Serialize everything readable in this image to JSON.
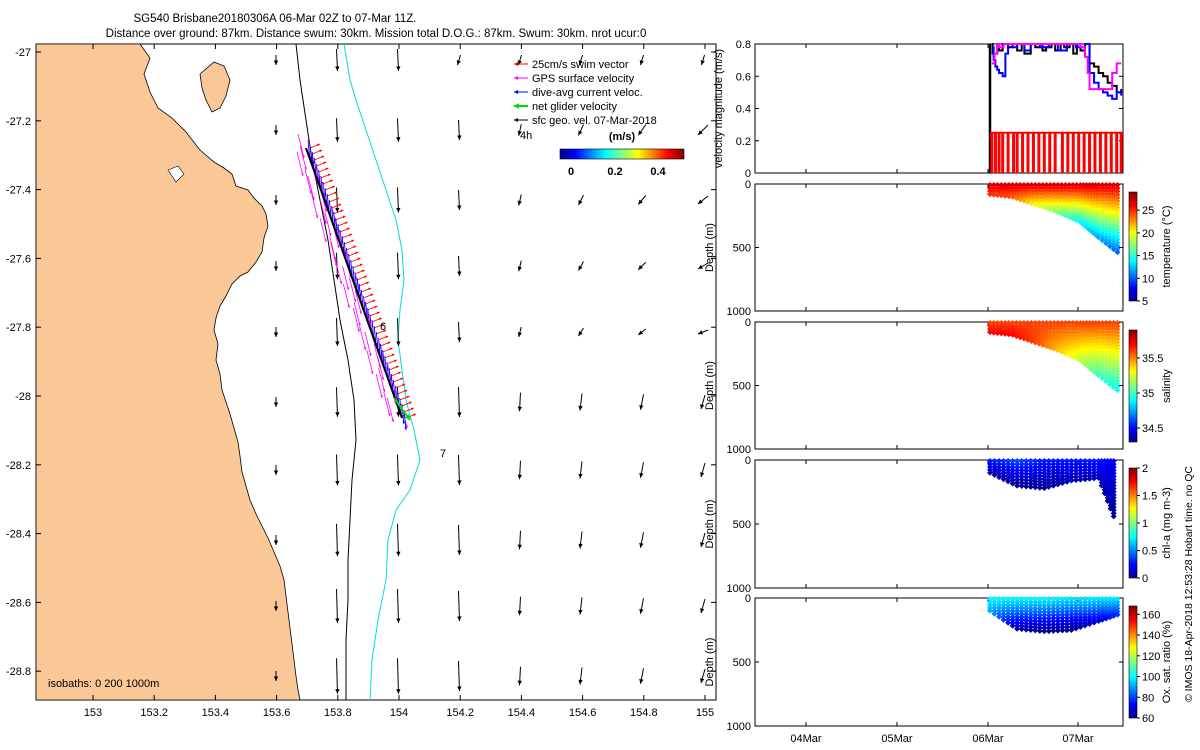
{
  "title": {
    "line1": "SG540 Brisbane20180306A 06-Mar 02Z to 07-Mar 11Z.",
    "line2": "Distance over ground: 87km. Distance swum: 30km. Mission total D.O.G.: 87km. Swum: 30km. nrot ucur:0"
  },
  "credit": "© IMOS 18-Apr-2018 12:53:28 Hobart time. no QC",
  "colors": {
    "land": "#f9c896",
    "swim_vector": "#ff0000",
    "gps_velocity": "#ff00ff",
    "dive_avg_current": "#0000ff",
    "net_glider_velocity": "#00dd00",
    "isobath_200": "#000000",
    "isobath_1000": "#00dddd",
    "velocity_black": "#000000"
  },
  "map": {
    "x_ticks": [
      "153",
      "153.2",
      "153.4",
      "153.6",
      "153.8",
      "154",
      "154.2",
      "154.4",
      "154.6",
      "154.8",
      "155"
    ],
    "y_ticks": [
      "-27",
      "-27.2",
      "-27.4",
      "-27.6",
      "-27.8",
      "-28",
      "-28.2",
      "-28.4",
      "-28.6",
      "-28.8"
    ],
    "isobaths_label": "isobaths: 0   200  1000m",
    "legend": [
      "25cm/s swim vector",
      "GPS surface velocity",
      "dive-avg current veloc.",
      "net glider velocity",
      "sfc geo. vel. 07-Mar-2018"
    ],
    "time_labels": [
      "4h",
      "6",
      "7"
    ],
    "colorbar": {
      "title": "(m/s)",
      "ticks": [
        "0",
        "0.2",
        "0.4"
      ]
    }
  },
  "time_axis": {
    "ticks": [
      "04Mar",
      "05Mar",
      "06Mar",
      "07Mar"
    ]
  },
  "chart_data": [
    {
      "type": "line",
      "title": "",
      "ylabel": "velocity magnitude (m/s)",
      "x_ticks": [
        "04Mar",
        "05Mar",
        "06Mar",
        "07Mar"
      ],
      "y_ticks": [
        "0",
        "0.2",
        "0.4",
        "0.6",
        "0.8"
      ],
      "ylim": [
        0,
        0.8
      ],
      "series": [
        {
          "color": "#000000",
          "x_days": [
            0.02,
            0.03,
            0.08,
            0.1,
            0.14,
            0.2,
            0.25,
            0.3,
            0.35,
            0.38,
            0.45,
            0.5,
            0.55,
            0.58,
            0.62,
            0.68,
            0.72,
            0.78,
            0.82,
            0.88,
            0.92,
            0.96,
            1.0,
            1.05,
            1.1,
            1.15,
            1.2,
            1.25,
            1.3,
            1.35,
            1.4,
            1.45
          ],
          "values": [
            0.8,
            0.74,
            0.8,
            0.76,
            0.8,
            0.78,
            0.8,
            0.76,
            0.8,
            0.74,
            0.8,
            0.78,
            0.8,
            0.76,
            0.78,
            0.8,
            0.76,
            0.8,
            0.78,
            0.8,
            0.74,
            0.8,
            0.76,
            0.8,
            0.68,
            0.66,
            0.62,
            0.6,
            0.56,
            0.54,
            0.5,
            0.52
          ]
        },
        {
          "color": "#0000ff",
          "x_days": [
            0.02,
            0.04,
            0.06,
            0.08,
            0.1,
            0.14,
            0.17,
            0.2,
            0.25,
            0.3,
            0.38,
            0.45,
            0.55,
            0.65,
            0.75,
            0.85,
            0.95,
            1.05,
            1.1,
            1.15,
            1.2,
            1.25,
            1.3,
            1.35,
            1.4,
            1.45
          ],
          "values": [
            0.78,
            0.7,
            0.66,
            0.64,
            0.62,
            0.6,
            0.74,
            0.8,
            0.78,
            0.8,
            0.76,
            0.8,
            0.78,
            0.8,
            0.76,
            0.8,
            0.78,
            0.8,
            0.62,
            0.56,
            0.52,
            0.5,
            0.48,
            0.46,
            0.5,
            0.48
          ]
        },
        {
          "color": "#ff00ff",
          "x_days": [
            0.02,
            0.05,
            0.08,
            0.1,
            0.15,
            0.2,
            0.3,
            0.4,
            0.5,
            0.6,
            0.7,
            0.8,
            0.9,
            1.0,
            1.05,
            1.08,
            1.1,
            1.2,
            1.3,
            1.35,
            1.4,
            1.45
          ],
          "values": [
            0.68,
            0.74,
            0.8,
            0.78,
            0.8,
            0.8,
            0.8,
            0.8,
            0.8,
            0.8,
            0.8,
            0.8,
            0.8,
            0.78,
            0.72,
            0.62,
            0.52,
            0.52,
            0.52,
            0.62,
            0.68,
            0.68
          ]
        },
        {
          "color": "#ff0000",
          "x_days": [
            0.02,
            0.06,
            0.1,
            0.14,
            0.2,
            0.26,
            0.3,
            0.36,
            0.42,
            0.48,
            0.54,
            0.6,
            0.66,
            0.72,
            0.8,
            0.86,
            0.92,
            0.98,
            1.04,
            1.1,
            1.16,
            1.22,
            1.28,
            1.34,
            1.4,
            1.45
          ],
          "values": [
            0.25,
            0.25,
            0.25,
            0.25,
            0.25,
            0.25,
            0.25,
            0.25,
            0.25,
            0.25,
            0.25,
            0.25,
            0.25,
            0.25,
            0.25,
            0.25,
            0.25,
            0.25,
            0.25,
            0.25,
            0.25,
            0.25,
            0.25,
            0.25,
            0.25,
            0.25
          ]
        }
      ]
    },
    {
      "type": "scatter",
      "ylabel": "Depth (m)",
      "y_ticks": [
        "0",
        "500",
        "1000"
      ],
      "ylim": [
        1000,
        0
      ],
      "colorbar_label": "temperature (°C)",
      "colorbar_ticks": [
        "25",
        "20",
        "15",
        "10",
        "5"
      ],
      "colorbar_range": [
        5,
        29
      ],
      "profiles": [
        {
          "x_days": 0.0,
          "max_depth": 80,
          "top_value": 27,
          "bottom_value": 25
        },
        {
          "x_days": 0.25,
          "max_depth": 100,
          "top_value": 27,
          "bottom_value": 24
        },
        {
          "x_days": 0.5,
          "max_depth": 160,
          "top_value": 27,
          "bottom_value": 20
        },
        {
          "x_days": 0.75,
          "max_depth": 220,
          "top_value": 27,
          "bottom_value": 17
        },
        {
          "x_days": 1.0,
          "max_depth": 300,
          "top_value": 27,
          "bottom_value": 14
        },
        {
          "x_days": 1.2,
          "max_depth": 420,
          "top_value": 27,
          "bottom_value": 12
        },
        {
          "x_days": 1.45,
          "max_depth": 560,
          "top_value": 27,
          "bottom_value": 10
        }
      ]
    },
    {
      "type": "scatter",
      "ylabel": "Depth (m)",
      "y_ticks": [
        "0",
        "500",
        "1000"
      ],
      "ylim": [
        1000,
        0
      ],
      "colorbar_label": "salinity",
      "colorbar_ticks": [
        "35.5",
        "35",
        "34.5"
      ],
      "colorbar_range": [
        34.3,
        35.9
      ],
      "profiles": [
        {
          "x_days": 0.0,
          "max_depth": 80,
          "top_value": 35.6,
          "bottom_value": 35.7
        },
        {
          "x_days": 0.25,
          "max_depth": 100,
          "top_value": 35.6,
          "bottom_value": 35.7
        },
        {
          "x_days": 0.5,
          "max_depth": 160,
          "top_value": 35.6,
          "bottom_value": 35.6
        },
        {
          "x_days": 0.75,
          "max_depth": 220,
          "top_value": 35.6,
          "bottom_value": 35.4
        },
        {
          "x_days": 1.0,
          "max_depth": 300,
          "top_value": 35.6,
          "bottom_value": 35.2
        },
        {
          "x_days": 1.2,
          "max_depth": 420,
          "top_value": 35.6,
          "bottom_value": 35.0
        },
        {
          "x_days": 1.45,
          "max_depth": 560,
          "top_value": 35.6,
          "bottom_value": 34.9
        }
      ]
    },
    {
      "type": "scatter",
      "ylabel": "Depth (m)",
      "y_ticks": [
        "0",
        "500",
        "1000"
      ],
      "ylim": [
        1000,
        0
      ],
      "colorbar_label": "chl-a (mg m-3)",
      "colorbar_ticks": [
        "2",
        "1.5",
        "1",
        "0.5",
        "0"
      ],
      "colorbar_range": [
        0,
        2
      ],
      "profiles": [
        {
          "x_days": 0.0,
          "max_depth": 100,
          "top_value": 0.3,
          "bottom_value": 0.1
        },
        {
          "x_days": 0.3,
          "max_depth": 200,
          "top_value": 0.4,
          "bottom_value": 0.05
        },
        {
          "x_days": 0.6,
          "max_depth": 220,
          "top_value": 0.3,
          "bottom_value": 0.05
        },
        {
          "x_days": 0.9,
          "max_depth": 160,
          "top_value": 0.3,
          "bottom_value": 0.1
        },
        {
          "x_days": 1.2,
          "max_depth": 140,
          "top_value": 0.3,
          "bottom_value": 0.1
        },
        {
          "x_days": 1.4,
          "max_depth": 500,
          "top_value": 0.2,
          "bottom_value": 0.05
        }
      ]
    },
    {
      "type": "scatter",
      "ylabel": "Depth (m)",
      "y_ticks": [
        "0",
        "500",
        "1000"
      ],
      "ylim": [
        1000,
        0
      ],
      "colorbar_label": "Ox. sat. ratio (%)",
      "colorbar_ticks": [
        "160",
        "140",
        "120",
        "100",
        "80",
        "60"
      ],
      "colorbar_range": [
        60,
        168
      ],
      "profiles": [
        {
          "x_days": 0.0,
          "max_depth": 100,
          "top_value": 100,
          "bottom_value": 92
        },
        {
          "x_days": 0.3,
          "max_depth": 240,
          "top_value": 100,
          "bottom_value": 66
        },
        {
          "x_days": 0.6,
          "max_depth": 260,
          "top_value": 100,
          "bottom_value": 62
        },
        {
          "x_days": 0.9,
          "max_depth": 250,
          "top_value": 98,
          "bottom_value": 62
        },
        {
          "x_days": 1.2,
          "max_depth": 180,
          "top_value": 98,
          "bottom_value": 70
        },
        {
          "x_days": 1.45,
          "max_depth": 120,
          "top_value": 98,
          "bottom_value": 80
        }
      ]
    }
  ]
}
